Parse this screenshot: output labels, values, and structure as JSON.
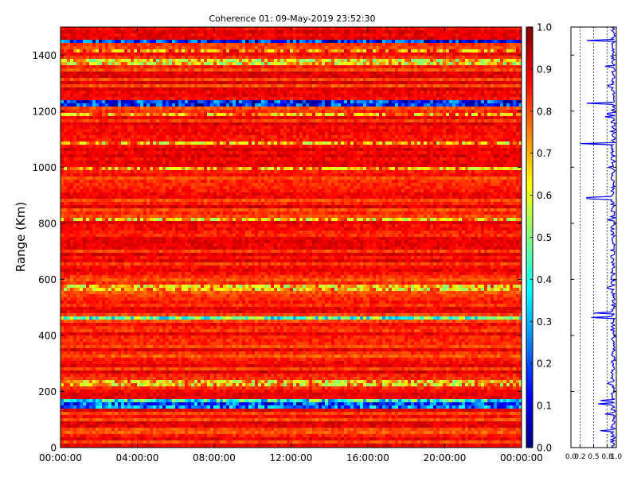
{
  "chart_data": [
    {
      "type": "heatmap",
      "title": "Coherence 01: 09-May-2019 23:52:30",
      "xlabel": "",
      "ylabel": "Range (Km)",
      "x_ticks": [
        "00:00:00",
        "04:00:00",
        "08:00:00",
        "12:00:00",
        "16:00:00",
        "20:00:00",
        "00:00:00"
      ],
      "x_range": [
        "00:00:00",
        "24:00:00"
      ],
      "y_ticks": [
        0,
        200,
        400,
        600,
        800,
        1000,
        1200,
        1400
      ],
      "ylim": [
        0,
        1500
      ],
      "colormap": "jet",
      "colorbar": {
        "range": [
          0.0,
          1.0
        ],
        "ticks": [
          "0.0",
          "0.1",
          "0.2",
          "0.3",
          "0.4",
          "0.5",
          "0.6",
          "0.7",
          "0.8",
          "0.9",
          "1.0"
        ]
      },
      "typical_value": 0.85,
      "low_coherence_bands": [
        {
          "range_km": 1452,
          "value": 0.15
        },
        {
          "range_km": 1420,
          "value": 0.75
        },
        {
          "range_km": 1385,
          "value": 0.65
        },
        {
          "range_km": 1372,
          "value": 0.65
        },
        {
          "range_km": 1228,
          "value": 0.15
        },
        {
          "range_km": 1190,
          "value": 0.72
        },
        {
          "range_km": 1085,
          "value": 0.7
        },
        {
          "range_km": 1000,
          "value": 0.72
        },
        {
          "range_km": 812,
          "value": 0.68
        },
        {
          "range_km": 570,
          "value": 0.68
        },
        {
          "range_km": 465,
          "value": 0.45
        },
        {
          "range_km": 230,
          "value": 0.68
        },
        {
          "range_km": 168,
          "value": 0.4
        },
        {
          "range_km": 155,
          "value": 0.2
        },
        {
          "range_km": 148,
          "value": 0.25
        }
      ]
    },
    {
      "type": "line",
      "xlabel": "",
      "ylabel": "",
      "x_ticks": [
        "0.0",
        "0.2",
        "0.5",
        "0.8",
        "1.0"
      ],
      "xlim": [
        0.0,
        1.0
      ],
      "ylim": [
        0,
        1500
      ],
      "reference_lines_x": [
        0.2,
        0.5,
        0.8
      ],
      "grid": "dotted vertical",
      "color": "#0000ff",
      "dips": [
        {
          "range_km": 1452,
          "value": 0.35
        },
        {
          "range_km": 1360,
          "value": 0.75
        },
        {
          "range_km": 1290,
          "value": 0.82
        },
        {
          "range_km": 1228,
          "value": 0.35
        },
        {
          "range_km": 1190,
          "value": 0.8
        },
        {
          "range_km": 1180,
          "value": 0.75
        },
        {
          "range_km": 1085,
          "value": 0.2
        },
        {
          "range_km": 1000,
          "value": 0.82
        },
        {
          "range_km": 890,
          "value": 0.35
        },
        {
          "range_km": 812,
          "value": 0.8
        },
        {
          "range_km": 570,
          "value": 0.8
        },
        {
          "range_km": 480,
          "value": 0.5
        },
        {
          "range_km": 465,
          "value": 0.45
        },
        {
          "range_km": 230,
          "value": 0.82
        },
        {
          "range_km": 168,
          "value": 0.65
        },
        {
          "range_km": 155,
          "value": 0.6
        },
        {
          "range_km": 120,
          "value": 0.75
        },
        {
          "range_km": 60,
          "value": 0.65
        }
      ]
    }
  ]
}
